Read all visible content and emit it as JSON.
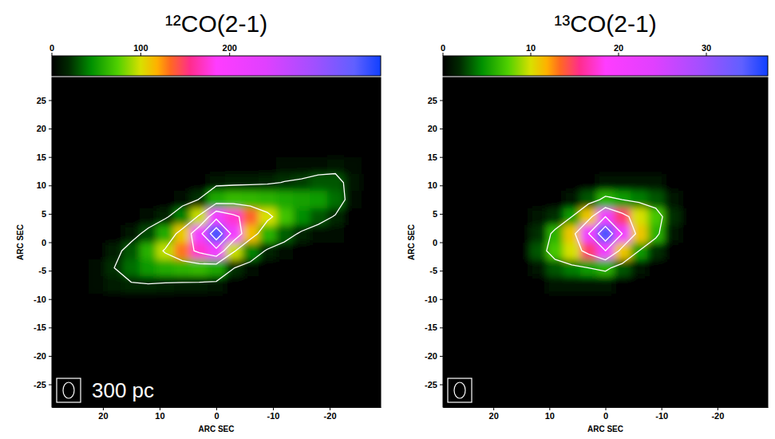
{
  "chart_data": [
    {
      "type": "heatmap",
      "title": "¹²CO(2-1)",
      "xlabel": "ARC SEC",
      "ylabel": "ARC SEC",
      "annotations": [
        "300 pc"
      ],
      "xlim": [
        29,
        -29
      ],
      "ylim": [
        -29,
        29
      ],
      "xticks": [
        20,
        10,
        0,
        -10,
        -20
      ],
      "yticks": [
        -25,
        -20,
        -15,
        -10,
        -5,
        0,
        5,
        10,
        15,
        20,
        25
      ],
      "colorbar_range": [
        0,
        370
      ],
      "colorbar_ticks": [
        0,
        100,
        200
      ],
      "contour_levels": [
        20,
        90,
        160,
        230,
        300
      ],
      "x": [
        21,
        18,
        15,
        12,
        9,
        6,
        3,
        0,
        -3,
        -6,
        -9,
        -12,
        -15,
        -18,
        -21,
        -24
      ],
      "y": [
        13.5,
        10.5,
        7.5,
        4.5,
        1.5,
        -1.5,
        -4.5,
        -7.5
      ],
      "values": [
        [
          0,
          0,
          0,
          0,
          0,
          0,
          0,
          0,
          0,
          2,
          3,
          4,
          5,
          8,
          11,
          4
        ],
        [
          0,
          0,
          0,
          0,
          0,
          0,
          2,
          11,
          12,
          14,
          16,
          21,
          24,
          30,
          30,
          9
        ],
        [
          0,
          0,
          0,
          1,
          3,
          7,
          21,
          56,
          64,
          63,
          60,
          56,
          52,
          50,
          36,
          8
        ],
        [
          0,
          1,
          2,
          6,
          15,
          41,
          97,
          210,
          173,
          135,
          100,
          68,
          44,
          30,
          18,
          3
        ],
        [
          0,
          3,
          11,
          27,
          57,
          109,
          207,
          350,
          207,
          113,
          60,
          32,
          16,
          8,
          4,
          1
        ],
        [
          2,
          12,
          30,
          59,
          95,
          131,
          173,
          210,
          97,
          42,
          16,
          7,
          3,
          2,
          0,
          0
        ],
        [
          5,
          20,
          36,
          49,
          57,
          61,
          64,
          56,
          21,
          8,
          3,
          1,
          0,
          0,
          0,
          0
        ],
        [
          4,
          12,
          17,
          18,
          15,
          13,
          12,
          11,
          2,
          0,
          0,
          0,
          0,
          0,
          0,
          0
        ]
      ]
    },
    {
      "type": "heatmap",
      "title": "¹³CO(2-1)",
      "xlabel": "ARC SEC",
      "ylabel": "ARC SEC",
      "xlim": [
        29,
        -29
      ],
      "ylim": [
        -29,
        29
      ],
      "xticks": [
        20,
        10,
        0,
        -10,
        -20
      ],
      "yticks": [
        -25,
        -20,
        -15,
        -10,
        -5,
        0,
        5,
        10,
        15,
        20,
        25
      ],
      "colorbar_range": [
        0,
        37
      ],
      "colorbar_ticks": [
        0,
        10,
        20,
        30
      ],
      "contour_levels": [
        5,
        13,
        21,
        29
      ],
      "x": [
        15,
        12,
        9,
        6,
        3,
        0,
        -3,
        -6,
        -9,
        -12,
        -15
      ],
      "y": [
        10.5,
        7.5,
        4.5,
        1.5,
        -1.5,
        -4.5,
        -7.5
      ],
      "values": [
        [
          0,
          0,
          0,
          0,
          0,
          1,
          1,
          1,
          1,
          0,
          0
        ],
        [
          0,
          0,
          0,
          1,
          3,
          6,
          5,
          4,
          3,
          1,
          0
        ],
        [
          0,
          1,
          2,
          5,
          11,
          21,
          15,
          10,
          7,
          2,
          0
        ],
        [
          0,
          2,
          6,
          11,
          21,
          35,
          21,
          11,
          6,
          1,
          0
        ],
        [
          0,
          3,
          7,
          10,
          15,
          21,
          11,
          5,
          2,
          0,
          0
        ],
        [
          0,
          1,
          3,
          4,
          5,
          6,
          3,
          1,
          0,
          0,
          0
        ],
        [
          0,
          0,
          1,
          1,
          1,
          1,
          0,
          0,
          0,
          0,
          0
        ]
      ]
    }
  ]
}
